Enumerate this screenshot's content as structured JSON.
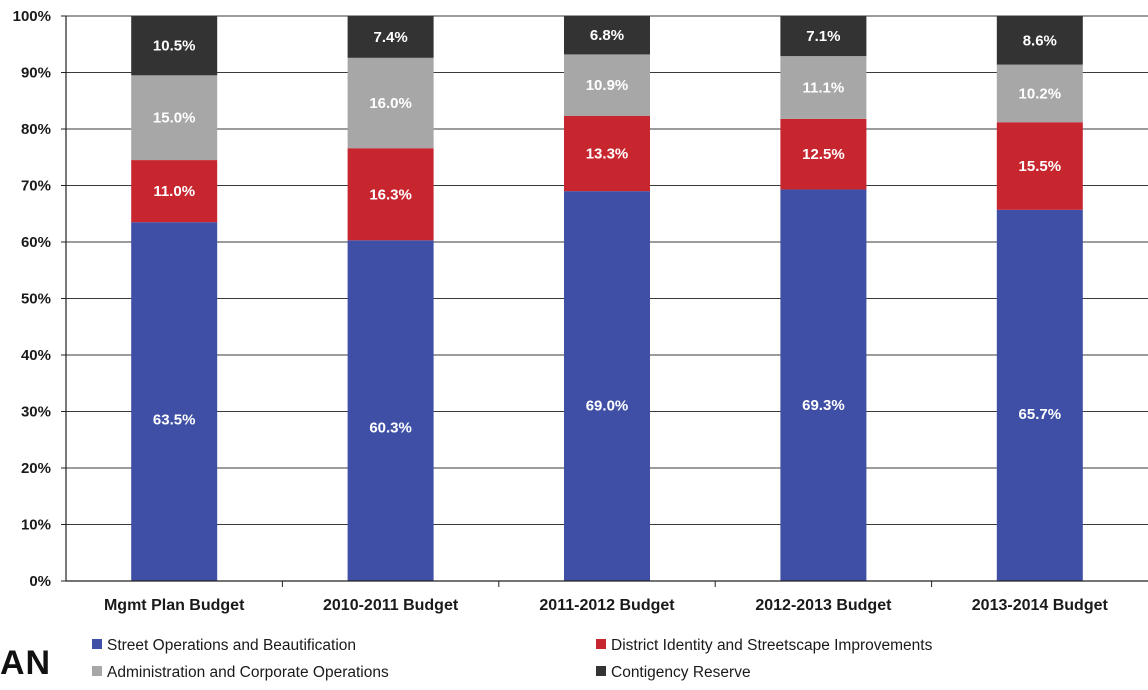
{
  "corner_text": "AN",
  "chart_data": {
    "type": "bar",
    "stacked": true,
    "percent": true,
    "categories": [
      "Mgmt Plan Budget",
      "2010-2011 Budget",
      "2011-2012 Budget",
      "2012-2013 Budget",
      "2013-2014 Budget"
    ],
    "series": [
      {
        "name": "Street Operations and Beautification",
        "color": "#3f4fa6",
        "values": [
          63.5,
          60.3,
          69.0,
          69.3,
          65.7
        ],
        "labels": [
          "63.5%",
          "60.3%",
          "69.0%",
          "69.3%",
          "65.7%"
        ]
      },
      {
        "name": "District Identity and Streetscape Improvements",
        "color": "#c8262f",
        "values": [
          11.0,
          16.3,
          13.3,
          12.5,
          15.5
        ],
        "labels": [
          "11.0%",
          "16.3%",
          "13.3%",
          "12.5%",
          "15.5%"
        ]
      },
      {
        "name": "Administration and Corporate Operations",
        "color": "#a7a7a7",
        "values": [
          15.0,
          16.0,
          10.9,
          11.1,
          10.2
        ],
        "labels": [
          "15.0%",
          "16.0%",
          "10.9%",
          "11.1%",
          "10.2%"
        ]
      },
      {
        "name": "Contigency Reserve",
        "color": "#333333",
        "values": [
          10.5,
          7.4,
          6.8,
          7.1,
          8.6
        ],
        "labels": [
          "10.5%",
          "7.4%",
          "6.8%",
          "7.1%",
          "8.6%"
        ]
      }
    ],
    "ylim": [
      0,
      100
    ],
    "yticks": [
      "0%",
      "10%",
      "20%",
      "30%",
      "40%",
      "50%",
      "60%",
      "70%",
      "80%",
      "90%",
      "100%"
    ],
    "grid": true,
    "legend": "bottom",
    "xlabel": "",
    "ylabel": "",
    "title": ""
  }
}
